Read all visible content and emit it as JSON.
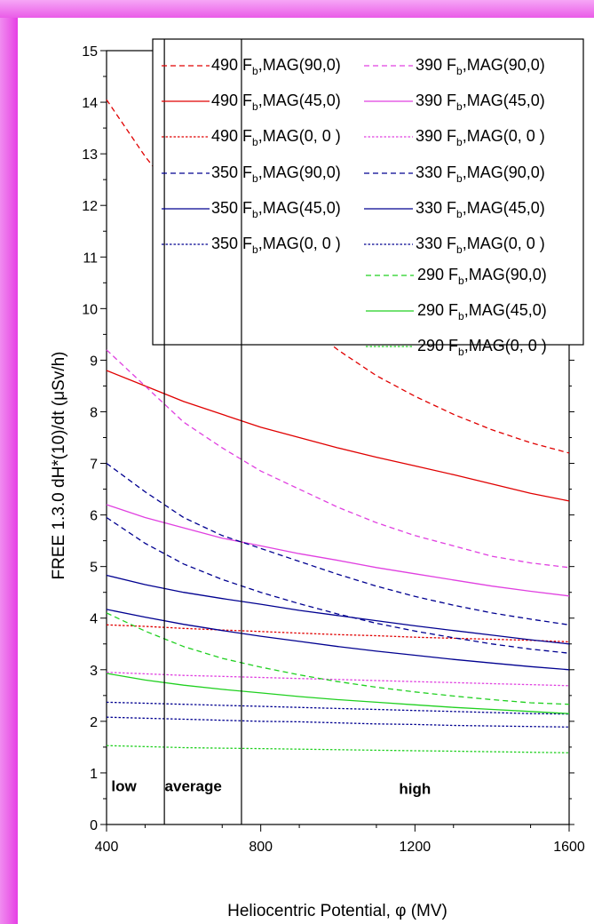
{
  "chart_data": {
    "type": "line",
    "xlabel": "Heliocentric Potential, φ (MV)",
    "ylabel": "FREE 1.3.0 dH*(10)/dt (μSv/h)",
    "xlim": [
      400,
      1600
    ],
    "ylim": [
      0,
      15
    ],
    "x_ticks": [
      400,
      800,
      1200,
      1600
    ],
    "y_ticks": [
      0,
      1,
      2,
      3,
      4,
      5,
      6,
      7,
      8,
      9,
      10,
      11,
      12,
      13,
      14,
      15
    ],
    "grid": false,
    "legend_position": "top-right",
    "x": [
      400,
      500,
      600,
      700,
      800,
      900,
      1000,
      1100,
      1200,
      1300,
      1400,
      1500,
      1600
    ],
    "series": [
      {
        "name": "490 F_b,MAG(90,0)",
        "color": "#e00000",
        "dash": "dashed",
        "values": [
          14.05,
          12.95,
          12.0,
          11.2,
          10.45,
          9.8,
          9.2,
          8.7,
          8.3,
          7.95,
          7.65,
          7.4,
          7.2
        ]
      },
      {
        "name": "490 F_b,MAG(45,0)",
        "color": "#e00000",
        "dash": "solid",
        "values": [
          8.8,
          8.5,
          8.2,
          7.95,
          7.7,
          7.5,
          7.3,
          7.12,
          6.95,
          6.78,
          6.6,
          6.42,
          6.27
        ]
      },
      {
        "name": "490 F_b,MAG(0, 0 )",
        "color": "#e00000",
        "dash": "dotted",
        "values": [
          3.87,
          3.84,
          3.8,
          3.77,
          3.74,
          3.71,
          3.68,
          3.66,
          3.63,
          3.61,
          3.59,
          3.57,
          3.54
        ]
      },
      {
        "name": "390 F_b,MAG(90,0)",
        "color": "#e040e0",
        "dash": "dashed",
        "values": [
          9.2,
          8.5,
          7.8,
          7.3,
          6.85,
          6.5,
          6.15,
          5.85,
          5.6,
          5.4,
          5.2,
          5.07,
          4.98
        ]
      },
      {
        "name": "390 F_b,MAG(45,0)",
        "color": "#e040e0",
        "dash": "solid",
        "values": [
          6.2,
          5.95,
          5.75,
          5.55,
          5.4,
          5.25,
          5.12,
          4.98,
          4.86,
          4.74,
          4.62,
          4.52,
          4.43
        ]
      },
      {
        "name": "390 F_b,MAG(0, 0 )",
        "color": "#e040e0",
        "dash": "dotted",
        "values": [
          2.95,
          2.92,
          2.89,
          2.87,
          2.85,
          2.83,
          2.81,
          2.79,
          2.77,
          2.75,
          2.73,
          2.71,
          2.69
        ]
      },
      {
        "name": "350 F_b,MAG(90,0)",
        "color": "#000090",
        "dash": "dashed",
        "values": [
          7.0,
          6.45,
          5.95,
          5.6,
          5.35,
          5.1,
          4.85,
          4.62,
          4.42,
          4.25,
          4.1,
          3.98,
          3.87
        ]
      },
      {
        "name": "350 F_b,MAG(45,0)",
        "color": "#000090",
        "dash": "solid",
        "values": [
          4.83,
          4.65,
          4.5,
          4.38,
          4.27,
          4.15,
          4.05,
          3.95,
          3.85,
          3.76,
          3.67,
          3.58,
          3.5
        ]
      },
      {
        "name": "350 F_b,MAG(0, 0 )",
        "color": "#000090",
        "dash": "dotted",
        "values": [
          2.37,
          2.35,
          2.33,
          2.31,
          2.29,
          2.27,
          2.25,
          2.23,
          2.21,
          2.19,
          2.17,
          2.15,
          2.14
        ]
      },
      {
        "name": "330 F_b,MAG(90,0)",
        "color": "#000090",
        "dash": "dashed",
        "values": [
          5.95,
          5.45,
          5.05,
          4.75,
          4.5,
          4.28,
          4.08,
          3.9,
          3.75,
          3.62,
          3.5,
          3.4,
          3.32
        ]
      },
      {
        "name": "330 F_b,MAG(45,0)",
        "color": "#000090",
        "dash": "solid",
        "values": [
          4.17,
          4.02,
          3.88,
          3.76,
          3.65,
          3.55,
          3.45,
          3.36,
          3.28,
          3.2,
          3.13,
          3.06,
          3.0
        ]
      },
      {
        "name": "330 F_b,MAG(0, 0 )",
        "color": "#000090",
        "dash": "dotted",
        "values": [
          2.08,
          2.06,
          2.04,
          2.02,
          2.0,
          1.99,
          1.97,
          1.95,
          1.94,
          1.92,
          1.91,
          1.9,
          1.89
        ]
      },
      {
        "name": "290 F_b,MAG(90,0)",
        "color": "#20d020",
        "dash": "dashed",
        "values": [
          4.1,
          3.75,
          3.45,
          3.22,
          3.05,
          2.9,
          2.77,
          2.66,
          2.57,
          2.49,
          2.42,
          2.36,
          2.33
        ]
      },
      {
        "name": "290 F_b,MAG(45,0)",
        "color": "#20d020",
        "dash": "solid",
        "values": [
          2.93,
          2.8,
          2.7,
          2.62,
          2.55,
          2.48,
          2.42,
          2.37,
          2.32,
          2.27,
          2.23,
          2.19,
          2.15
        ]
      },
      {
        "name": "290 F_b,MAG(0, 0 )",
        "color": "#20d020",
        "dash": "dotted",
        "values": [
          1.53,
          1.51,
          1.49,
          1.48,
          1.47,
          1.46,
          1.45,
          1.44,
          1.43,
          1.42,
          1.41,
          1.4,
          1.39
        ]
      }
    ],
    "vlines": [
      550,
      750
    ],
    "annotations": [
      {
        "text": "low",
        "x": 445,
        "y": 0.75
      },
      {
        "text": "average",
        "x": 625,
        "y": 0.75
      },
      {
        "text": "high",
        "x": 1200,
        "y": 0.7
      }
    ]
  }
}
